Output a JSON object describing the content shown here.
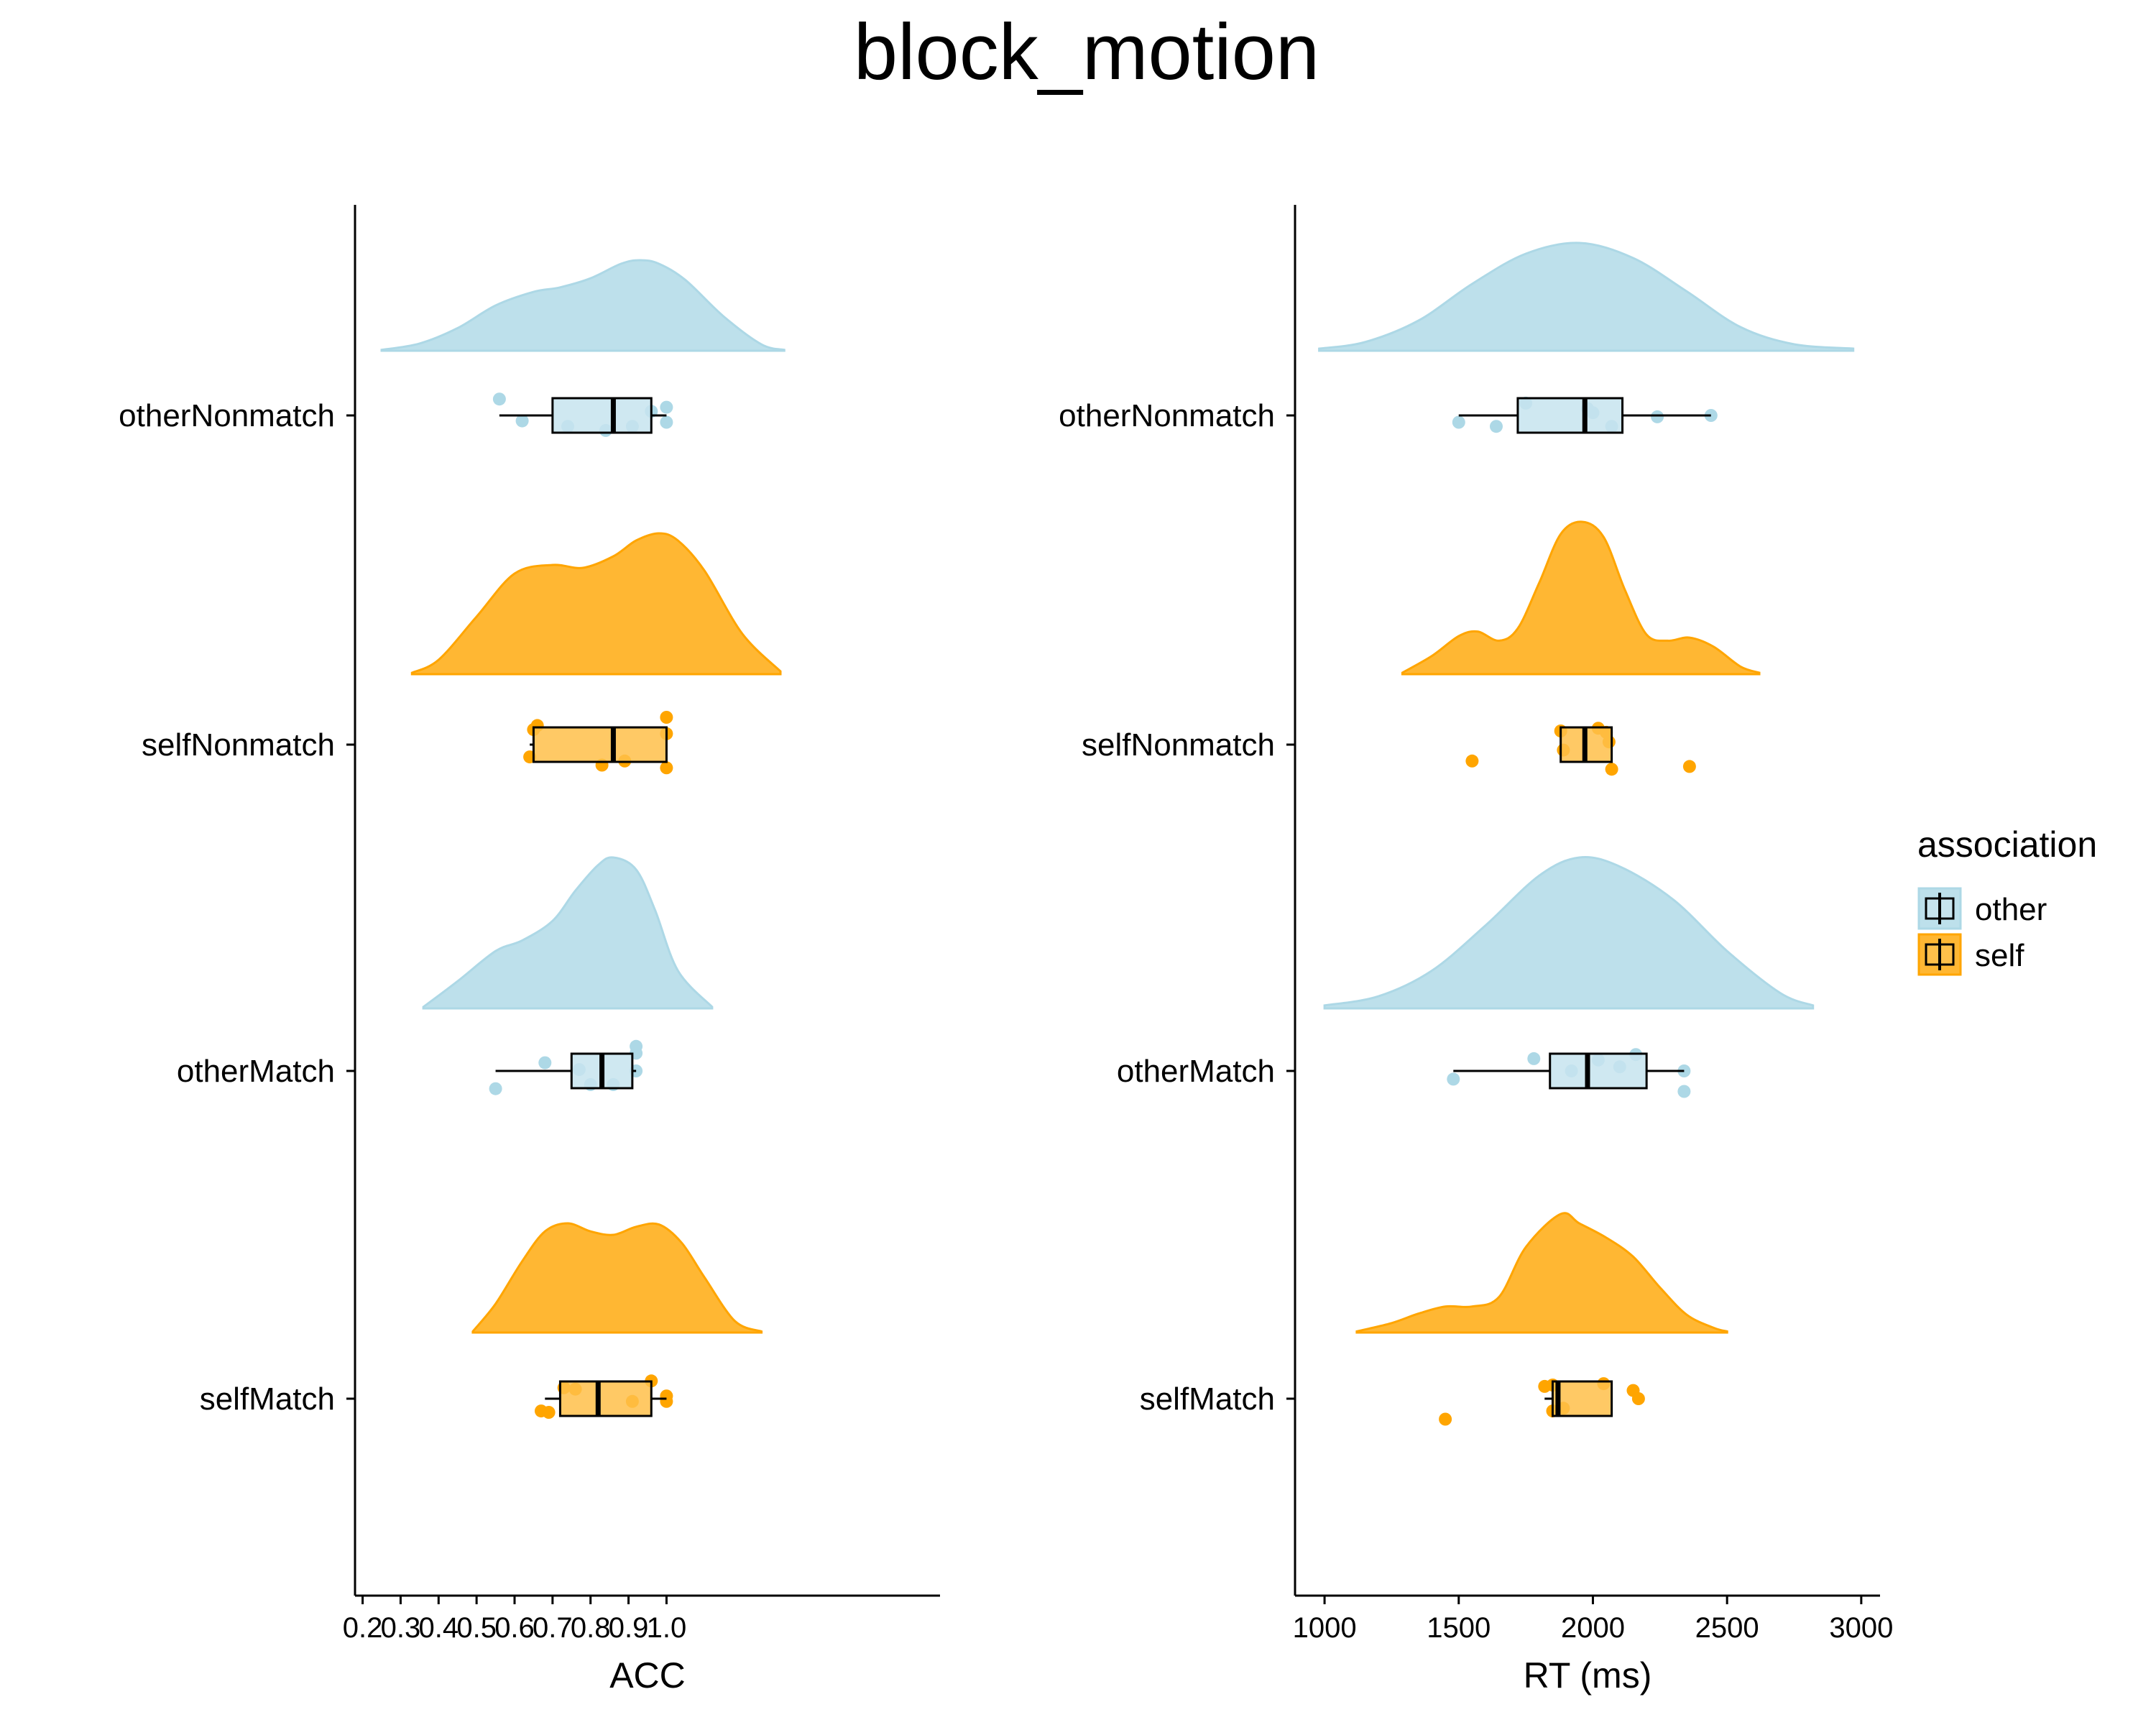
{
  "title": "block_motion",
  "colors": {
    "other": "#ADD8E6",
    "self": "#FFA500"
  },
  "legend": {
    "title": "association",
    "items": [
      {
        "key": "other",
        "label": "other"
      },
      {
        "key": "self",
        "label": "self"
      }
    ]
  },
  "chart_data": [
    {
      "type": "raincloud",
      "panel": "left",
      "xlabel": "ACC",
      "xlim": [
        0.18,
        1.72
      ],
      "ticks": [
        0.2,
        0.3,
        0.4,
        0.5,
        0.6,
        0.7,
        0.8,
        0.9,
        1.0
      ],
      "tick_labels": [
        "0.2",
        "0.3",
        "0.4",
        "0.5",
        "0.6",
        "0.7",
        "0.8",
        "0.9",
        "1.0"
      ],
      "categories": [
        "otherNonmatch",
        "selfNonmatch",
        "otherMatch",
        "selfMatch"
      ],
      "groups": [
        {
          "category": "otherNonmatch",
          "association": "other",
          "box": {
            "whisker_low": 0.56,
            "q1": 0.7,
            "median": 0.86,
            "q3": 0.96,
            "whisker_high": 1.0
          },
          "points": [
            [
              0.56,
              0.6
            ],
            [
              0.62,
              -0.2
            ],
            [
              0.74,
              -0.4
            ],
            [
              0.84,
              -0.55
            ],
            [
              0.91,
              -0.4
            ],
            [
              0.96,
              0.15
            ],
            [
              1.0,
              0.3
            ],
            [
              1.0,
              -0.25
            ]
          ],
          "density": {
            "x": [
              0.25,
              0.35,
              0.45,
              0.55,
              0.65,
              0.72,
              0.8,
              0.88,
              0.93,
              0.98,
              1.05,
              1.15,
              1.25,
              1.31
            ],
            "y": [
              0.01,
              0.08,
              0.25,
              0.5,
              0.65,
              0.7,
              0.8,
              0.96,
              1.0,
              0.96,
              0.78,
              0.38,
              0.07,
              0.01
            ]
          }
        },
        {
          "category": "selfNonmatch",
          "association": "self",
          "box": {
            "whisker_low": 0.64,
            "q1": 0.65,
            "median": 0.86,
            "q3": 1.0,
            "whisker_high": 1.0
          },
          "points": [
            [
              0.65,
              0.55
            ],
            [
              0.66,
              0.7
            ],
            [
              0.64,
              -0.45
            ],
            [
              0.83,
              -0.75
            ],
            [
              0.89,
              -0.6
            ],
            [
              1.0,
              1.0
            ],
            [
              1.0,
              0.4
            ],
            [
              1.0,
              -0.85
            ]
          ],
          "density": {
            "x": [
              0.33,
              0.4,
              0.5,
              0.6,
              0.7,
              0.78,
              0.86,
              0.92,
              0.98,
              1.03,
              1.1,
              1.2,
              1.3
            ],
            "y": [
              0.01,
              0.1,
              0.4,
              0.7,
              0.76,
              0.74,
              0.82,
              0.93,
              0.98,
              0.93,
              0.72,
              0.28,
              0.02
            ]
          }
        },
        {
          "category": "otherMatch",
          "association": "other",
          "box": {
            "whisker_low": 0.55,
            "q1": 0.75,
            "median": 0.83,
            "q3": 0.91,
            "whisker_high": 0.92
          },
          "points": [
            [
              0.55,
              -0.65
            ],
            [
              0.68,
              0.3
            ],
            [
              0.77,
              0.05
            ],
            [
              0.8,
              -0.5
            ],
            [
              0.86,
              -0.5
            ],
            [
              0.92,
              0.65
            ],
            [
              0.92,
              0.9
            ],
            [
              0.92,
              0.0
            ]
          ],
          "density": {
            "x": [
              0.36,
              0.45,
              0.55,
              0.62,
              0.7,
              0.76,
              0.82,
              0.86,
              0.92,
              0.97,
              1.03,
              1.12
            ],
            "y": [
              0.01,
              0.18,
              0.38,
              0.45,
              0.58,
              0.78,
              0.95,
              1.0,
              0.92,
              0.65,
              0.25,
              0.01
            ]
          }
        },
        {
          "category": "selfMatch",
          "association": "self",
          "box": {
            "whisker_low": 0.68,
            "q1": 0.72,
            "median": 0.82,
            "q3": 0.96,
            "whisker_high": 1.0
          },
          "points": [
            [
              0.67,
              -0.45
            ],
            [
              0.69,
              -0.5
            ],
            [
              0.73,
              0.4
            ],
            [
              0.76,
              0.35
            ],
            [
              0.91,
              -0.1
            ],
            [
              0.96,
              0.65
            ],
            [
              1.0,
              0.1
            ],
            [
              1.0,
              -0.1
            ]
          ],
          "density": {
            "x": [
              0.49,
              0.55,
              0.62,
              0.68,
              0.74,
              0.8,
              0.86,
              0.92,
              0.98,
              1.04,
              1.1,
              1.18,
              1.25
            ],
            "y": [
              0.01,
              0.25,
              0.62,
              0.88,
              0.95,
              0.88,
              0.85,
              0.92,
              0.94,
              0.78,
              0.48,
              0.1,
              0.01
            ]
          }
        }
      ]
    },
    {
      "type": "raincloud",
      "panel": "right",
      "xlabel": "RT (ms)",
      "xlim": [
        890,
        3070
      ],
      "ticks": [
        1000,
        1500,
        2000,
        2500,
        3000
      ],
      "tick_labels": [
        "1000",
        "1500",
        "2000",
        "2500",
        "3000"
      ],
      "categories": [
        "otherNonmatch",
        "selfNonmatch",
        "otherMatch",
        "selfMatch"
      ],
      "groups": [
        {
          "category": "otherNonmatch",
          "association": "other",
          "box": {
            "whisker_low": 1500,
            "q1": 1720,
            "median": 1970,
            "q3": 2110,
            "whisker_high": 2440
          },
          "points": [
            [
              1500,
              -0.25
            ],
            [
              1640,
              -0.4
            ],
            [
              1750,
              0.45
            ],
            [
              1980,
              0.25
            ],
            [
              2000,
              0.1
            ],
            [
              2070,
              -0.4
            ],
            [
              2240,
              -0.05
            ],
            [
              2440,
              0.0
            ]
          ],
          "density": {
            "x": [
              980,
              1150,
              1350,
              1550,
              1750,
              1950,
              2150,
              2350,
              2550,
              2750,
              2970
            ],
            "y": [
              0.02,
              0.08,
              0.28,
              0.62,
              0.9,
              1.0,
              0.86,
              0.55,
              0.22,
              0.06,
              0.02
            ]
          }
        },
        {
          "category": "selfNonmatch",
          "association": "self",
          "box": {
            "whisker_low": 1880,
            "q1": 1880,
            "median": 1970,
            "q3": 2070,
            "whisker_high": 2070
          },
          "points": [
            [
              1550,
              -0.6
            ],
            [
              1880,
              0.5
            ],
            [
              1890,
              -0.2
            ],
            [
              2020,
              0.6
            ],
            [
              2050,
              0.45
            ],
            [
              2060,
              0.1
            ],
            [
              2070,
              -0.9
            ],
            [
              2360,
              -0.8
            ]
          ],
          "density": {
            "x": [
              1290,
              1400,
              1500,
              1570,
              1650,
              1720,
              1800,
              1880,
              1960,
              2040,
              2120,
              2200,
              2280,
              2360,
              2450,
              2550,
              2620
            ],
            "y": [
              0.01,
              0.12,
              0.25,
              0.28,
              0.22,
              0.3,
              0.6,
              0.92,
              1.0,
              0.9,
              0.55,
              0.26,
              0.22,
              0.24,
              0.18,
              0.05,
              0.01
            ]
          }
        },
        {
          "category": "otherMatch",
          "association": "other",
          "box": {
            "whisker_low": 1480,
            "q1": 1840,
            "median": 1980,
            "q3": 2200,
            "whisker_high": 2340
          },
          "points": [
            [
              1480,
              -0.3
            ],
            [
              1780,
              0.45
            ],
            [
              1920,
              0.0
            ],
            [
              2020,
              0.4
            ],
            [
              2100,
              0.15
            ],
            [
              2160,
              0.6
            ],
            [
              2340,
              0.0
            ],
            [
              2340,
              -0.75
            ]
          ],
          "density": {
            "x": [
              1000,
              1200,
              1400,
              1600,
              1800,
              1950,
              2100,
              2300,
              2500,
              2700,
              2820
            ],
            "y": [
              0.02,
              0.08,
              0.25,
              0.55,
              0.88,
              1.0,
              0.94,
              0.72,
              0.38,
              0.1,
              0.02
            ]
          }
        },
        {
          "category": "selfMatch",
          "association": "self",
          "box": {
            "whisker_low": 1820,
            "q1": 1850,
            "median": 1870,
            "q3": 2070,
            "whisker_high": 2070
          },
          "points": [
            [
              1450,
              -0.75
            ],
            [
              1820,
              0.45
            ],
            [
              1850,
              0.5
            ],
            [
              1850,
              -0.45
            ],
            [
              1890,
              -0.35
            ],
            [
              2040,
              0.55
            ],
            [
              2150,
              0.3
            ],
            [
              2170,
              0.0
            ]
          ],
          "density": {
            "x": [
              1120,
              1250,
              1350,
              1450,
              1550,
              1650,
              1750,
              1880,
              1950,
              2050,
              2150,
              2250,
              2350,
              2450,
              2500
            ],
            "y": [
              0.01,
              0.08,
              0.16,
              0.22,
              0.22,
              0.3,
              0.72,
              1.0,
              0.92,
              0.8,
              0.64,
              0.38,
              0.15,
              0.04,
              0.01
            ]
          }
        }
      ]
    }
  ]
}
